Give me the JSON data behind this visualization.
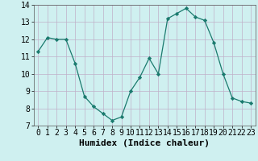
{
  "x": [
    0,
    1,
    2,
    3,
    4,
    5,
    6,
    7,
    8,
    9,
    10,
    11,
    12,
    13,
    14,
    15,
    16,
    17,
    18,
    19,
    20,
    21,
    22,
    23
  ],
  "y": [
    11.3,
    12.1,
    12.0,
    12.0,
    10.6,
    8.7,
    8.1,
    7.7,
    7.3,
    7.5,
    9.0,
    9.8,
    10.9,
    10.0,
    13.2,
    13.5,
    13.8,
    13.3,
    13.1,
    11.8,
    10.0,
    8.6,
    8.4,
    8.3
  ],
  "line_color": "#1a7a6e",
  "marker": "D",
  "marker_size": 2.2,
  "bg_color": "#cff0f0",
  "grid_color": "#c0b0c8",
  "xlabel": "Humidex (Indice chaleur)",
  "ylim": [
    7,
    14
  ],
  "xlim": [
    -0.5,
    23.5
  ],
  "yticks": [
    7,
    8,
    9,
    10,
    11,
    12,
    13,
    14
  ],
  "xticks": [
    0,
    1,
    2,
    3,
    4,
    5,
    6,
    7,
    8,
    9,
    10,
    11,
    12,
    13,
    14,
    15,
    16,
    17,
    18,
    19,
    20,
    21,
    22,
    23
  ],
  "tick_fontsize": 7,
  "xlabel_fontsize": 8
}
